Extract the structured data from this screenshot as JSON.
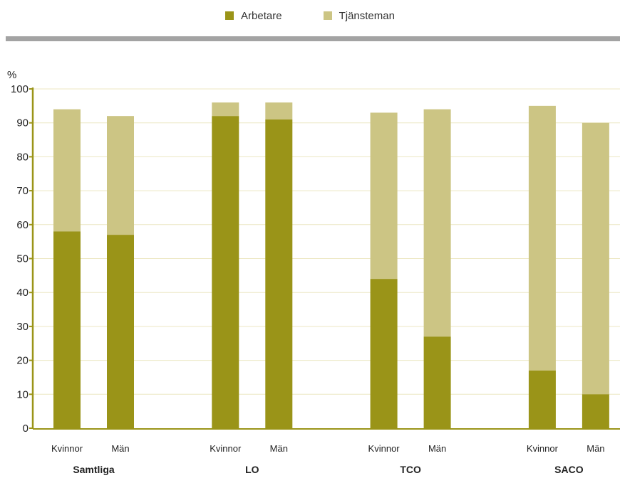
{
  "legend": {
    "items": [
      {
        "label": "Arbetare",
        "color": "#9a9418"
      },
      {
        "label": "Tjänsteman",
        "color": "#ccc584"
      }
    ]
  },
  "chart_data": {
    "type": "bar",
    "stacked": true,
    "ylabel": "%",
    "ylim": [
      0,
      100
    ],
    "yticks": [
      0,
      10,
      20,
      30,
      40,
      50,
      60,
      70,
      80,
      90,
      100
    ],
    "grid": true,
    "legend_position": "top",
    "groups": [
      {
        "name": "Samtliga",
        "categories": [
          "Kvinnor",
          "Män"
        ]
      },
      {
        "name": "LO",
        "categories": [
          "Kvinnor",
          "Män"
        ]
      },
      {
        "name": "TCO",
        "categories": [
          "Kvinnor",
          "Män"
        ]
      },
      {
        "name": "SACO",
        "categories": [
          "Kvinnor",
          "Män"
        ]
      }
    ],
    "series": [
      {
        "name": "Arbetare",
        "color": "#9a9418",
        "values": [
          58,
          57,
          92,
          91,
          44,
          27,
          17,
          10
        ]
      },
      {
        "name": "Tjänsteman",
        "color": "#ccc584",
        "values": [
          36,
          35,
          4,
          5,
          49,
          67,
          78,
          80
        ]
      }
    ]
  }
}
